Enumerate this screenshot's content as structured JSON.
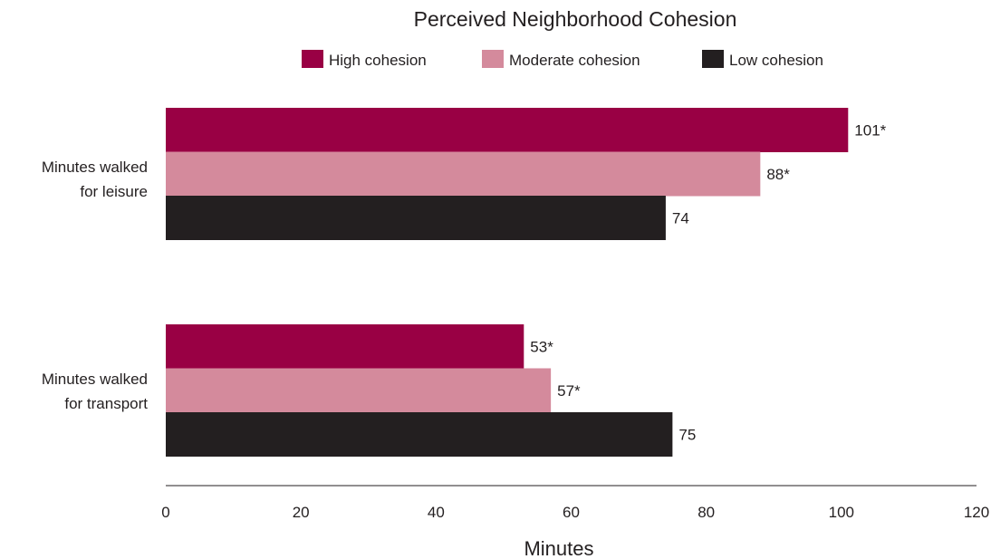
{
  "chart_data": {
    "type": "bar",
    "orientation": "horizontal",
    "legend_title": "Perceived Neighborhood Cohesion",
    "legend_position": "top",
    "xlabel": "Minutes",
    "xlim": [
      0,
      120
    ],
    "xticks": [
      0,
      20,
      40,
      60,
      80,
      100,
      120
    ],
    "grid": false,
    "categories": [
      [
        "Minutes walked",
        "for leisure"
      ],
      [
        "Minutes walked",
        "for transport"
      ]
    ],
    "series": [
      {
        "name": "High cohesion",
        "color": "#990044",
        "values": [
          101,
          53
        ],
        "labels": [
          "101*",
          "53*"
        ]
      },
      {
        "name": "Moderate cohesion",
        "color": "#d48a9c",
        "values": [
          88,
          57
        ],
        "labels": [
          "88*",
          "57*"
        ]
      },
      {
        "name": "Low cohesion",
        "color": "#231f20",
        "values": [
          74,
          75
        ],
        "labels": [
          "74",
          "75"
        ]
      }
    ]
  }
}
